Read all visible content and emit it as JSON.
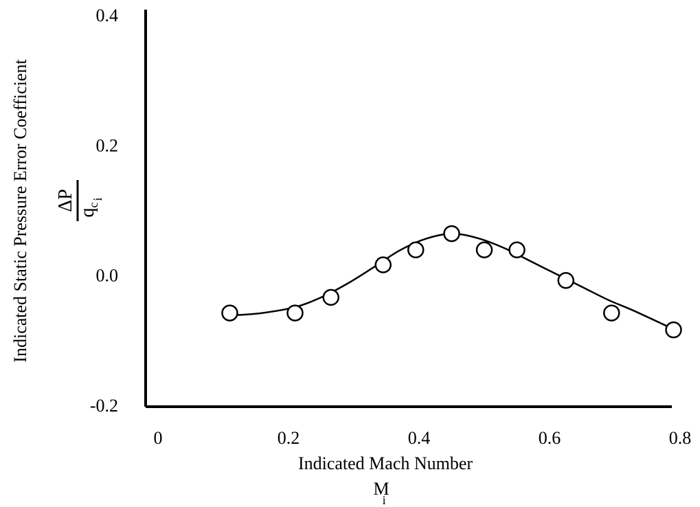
{
  "chart_data": {
    "type": "scatter",
    "title": "",
    "xlabel": "Indicated Mach Number",
    "xlabel_symbol": "M",
    "xlabel_symbol_sub": "i",
    "ylabel": "Indicated Static Pressure Error Coefficient",
    "ylabel_frac_num": "ΔP",
    "ylabel_frac_den": "q",
    "ylabel_frac_den_sub1": "c",
    "ylabel_frac_den_sub2": "i",
    "xlim": [
      0,
      0.8
    ],
    "ylim": [
      -0.2,
      0.4
    ],
    "xticks": [
      0,
      0.2,
      0.4,
      0.6,
      0.8
    ],
    "xtick_labels": [
      "0",
      "0.2",
      "0.4",
      "0.6",
      "0.8"
    ],
    "yticks": [
      -0.2,
      0.0,
      0.2,
      0.4
    ],
    "ytick_labels": [
      "-0.2",
      "0.0",
      "0.2",
      "0.4"
    ],
    "grid": false,
    "series": [
      {
        "kind": "points",
        "marker": "open-circle",
        "x": [
          0.11,
          0.21,
          0.265,
          0.345,
          0.395,
          0.45,
          0.5,
          0.55,
          0.625,
          0.695,
          0.79
        ],
        "y": [
          -0.058,
          -0.058,
          -0.034,
          0.016,
          0.039,
          0.064,
          0.039,
          0.039,
          -0.008,
          -0.058,
          -0.084
        ]
      },
      {
        "kind": "fit-curve",
        "x": [
          0.11,
          0.16,
          0.21,
          0.25,
          0.29,
          0.33,
          0.37,
          0.41,
          0.45,
          0.49,
          0.53,
          0.57,
          0.61,
          0.65,
          0.69,
          0.73,
          0.79
        ],
        "y": [
          -0.062,
          -0.058,
          -0.049,
          -0.034,
          -0.013,
          0.012,
          0.038,
          0.056,
          0.064,
          0.057,
          0.042,
          0.022,
          0.002,
          -0.018,
          -0.038,
          -0.055,
          -0.083
        ]
      }
    ]
  }
}
